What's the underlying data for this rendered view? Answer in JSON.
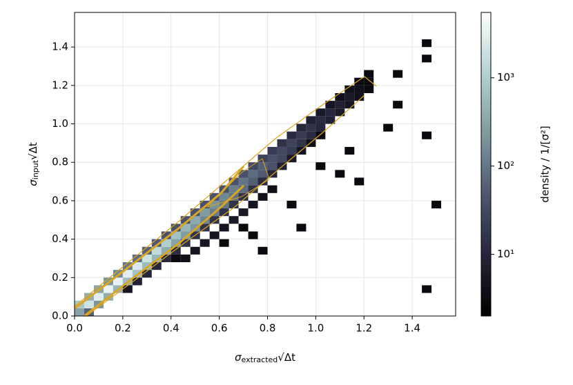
{
  "chart_data": {
    "type": "hist2d",
    "xlabel": {
      "symbol": "σ",
      "subscript": "extracted",
      "suffix": "√Δt"
    },
    "ylabel": {
      "symbol": "σ",
      "subscript": "input",
      "suffix": "√Δt"
    },
    "colorbar_label": "density / 1/[σ²]",
    "xlim": [
      0,
      1.58
    ],
    "ylim": [
      0,
      1.58
    ],
    "xticks": [
      {
        "value": 0,
        "label": "0.0"
      },
      0.2,
      0.4,
      0.6,
      0.8,
      {
        "value": 1,
        "label": "1.0"
      },
      1.2,
      1.4
    ],
    "yticks": [
      {
        "value": 0,
        "label": "0.0"
      },
      0.2,
      0.4,
      0.6,
      0.8,
      {
        "value": 1,
        "label": "1.0"
      },
      1.2,
      1.4
    ],
    "clim": [
      2,
      5500
    ],
    "color_scale": "log",
    "cticks": [
      {
        "value": 10,
        "label": "10¹"
      },
      {
        "value": 100,
        "label": "10²"
      },
      {
        "value": 1000,
        "label": "10³"
      }
    ],
    "colormap": [
      "#000000",
      "#26263a",
      "#4e5670",
      "#7e9aa0",
      "#b4d2d2",
      "#ffffff"
    ],
    "grid": true,
    "xbin": 0.04,
    "ybin": 0.04,
    "contour_color": "#daa520",
    "cells": {
      "x": [
        0,
        0,
        0.04,
        0.04,
        0.04,
        0.08,
        0.08,
        0.08,
        0.12,
        0.12,
        0.12,
        0.16,
        0.16,
        0.16,
        0.2,
        0.2,
        0.2,
        0.2,
        0.24,
        0.24,
        0.24,
        0.24,
        0.28,
        0.28,
        0.28,
        0.28,
        0.32,
        0.32,
        0.32,
        0.32,
        0.36,
        0.36,
        0.36,
        0.36,
        0.4,
        0.4,
        0.4,
        0.4,
        0.4,
        0.44,
        0.44,
        0.44,
        0.44,
        0.44,
        0.48,
        0.48,
        0.48,
        0.48,
        0.48,
        0.52,
        0.52,
        0.52,
        0.52,
        0.52,
        0.56,
        0.56,
        0.56,
        0.56,
        0.56,
        0.6,
        0.6,
        0.6,
        0.6,
        0.6,
        0.6,
        0.64,
        0.64,
        0.64,
        0.64,
        0.64,
        0.68,
        0.68,
        0.68,
        0.68,
        0.68,
        0.68,
        0.72,
        0.72,
        0.72,
        0.72,
        0.72,
        0.72,
        0.76,
        0.76,
        0.76,
        0.76,
        0.76,
        0.76,
        0.8,
        0.8,
        0.8,
        0.8,
        0.8,
        0.84,
        0.84,
        0.84,
        0.84,
        0.88,
        0.88,
        0.88,
        0.88,
        0.88,
        0.92,
        0.92,
        0.92,
        0.92,
        0.92,
        0.96,
        0.96,
        0.96,
        0.96,
        1,
        1,
        1,
        1,
        1,
        1.04,
        1.04,
        1.04,
        1.08,
        1.08,
        1.08,
        1.08,
        1.12,
        1.12,
        1.12,
        1.12,
        1.16,
        1.16,
        1.16,
        1.16,
        1.2,
        1.2,
        1.2,
        1.28,
        1.32,
        1.32,
        1.44,
        1.44,
        1.44,
        1.44,
        1.48
      ],
      "y": [
        0,
        0.04,
        0,
        0.04,
        0.08,
        0.04,
        0.08,
        0.12,
        0.08,
        0.12,
        0.16,
        0.12,
        0.16,
        0.2,
        0.16,
        0.2,
        0.24,
        0.12,
        0.2,
        0.24,
        0.28,
        0.16,
        0.24,
        0.28,
        0.32,
        0.2,
        0.28,
        0.32,
        0.36,
        0.24,
        0.32,
        0.36,
        0.4,
        0.28,
        0.36,
        0.4,
        0.44,
        0.32,
        0.28,
        0.4,
        0.44,
        0.48,
        0.36,
        0.28,
        0.44,
        0.48,
        0.52,
        0.4,
        0.32,
        0.48,
        0.52,
        0.56,
        0.44,
        0.36,
        0.52,
        0.56,
        0.6,
        0.48,
        0.4,
        0.56,
        0.6,
        0.64,
        0.52,
        0.44,
        0.36,
        0.6,
        0.64,
        0.68,
        0.56,
        0.48,
        0.64,
        0.68,
        0.72,
        0.6,
        0.52,
        0.44,
        0.68,
        0.72,
        0.76,
        0.64,
        0.56,
        0.4,
        0.72,
        0.76,
        0.8,
        0.68,
        0.6,
        0.32,
        0.76,
        0.8,
        0.84,
        0.72,
        0.64,
        0.8,
        0.84,
        0.88,
        0.76,
        0.84,
        0.88,
        0.92,
        0.8,
        0.56,
        0.88,
        0.92,
        0.96,
        0.84,
        0.44,
        0.92,
        0.96,
        1,
        0.88,
        0.96,
        1,
        1.04,
        0.92,
        0.76,
        1,
        1.04,
        1.08,
        1.04,
        1.08,
        1.12,
        0.72,
        1.08,
        1.12,
        1.16,
        0.84,
        1.12,
        1.16,
        1.2,
        0.68,
        1.16,
        1.2,
        1.24,
        0.96,
        1.24,
        1.08,
        1.4,
        1.32,
        0.92,
        0.12,
        0.56
      ],
      "values": [
        300,
        800,
        60,
        2000,
        400,
        200,
        3000,
        300,
        400,
        3500,
        200,
        500,
        3500,
        150,
        600,
        3000,
        100,
        5,
        700,
        2500,
        80,
        8,
        600,
        2000,
        60,
        10,
        500,
        1500,
        50,
        10,
        400,
        1000,
        40,
        10,
        300,
        700,
        40,
        12,
        3,
        250,
        500,
        40,
        15,
        4,
        200,
        350,
        40,
        15,
        5,
        150,
        250,
        40,
        15,
        5,
        120,
        200,
        40,
        15,
        5,
        100,
        150,
        40,
        15,
        5,
        3,
        90,
        120,
        40,
        15,
        6,
        80,
        100,
        40,
        15,
        6,
        3,
        60,
        80,
        30,
        15,
        5,
        3,
        50,
        60,
        25,
        12,
        4,
        3,
        40,
        40,
        20,
        10,
        4,
        30,
        30,
        15,
        8,
        20,
        25,
        12,
        6,
        3,
        15,
        20,
        10,
        5,
        3,
        12,
        15,
        8,
        4,
        10,
        12,
        6,
        3,
        3,
        8,
        10,
        5,
        6,
        8,
        4,
        3,
        5,
        6,
        4,
        3,
        4,
        4,
        3,
        3,
        3,
        3,
        3,
        3,
        3,
        3,
        3,
        3,
        3,
        3,
        3
      ]
    }
  }
}
